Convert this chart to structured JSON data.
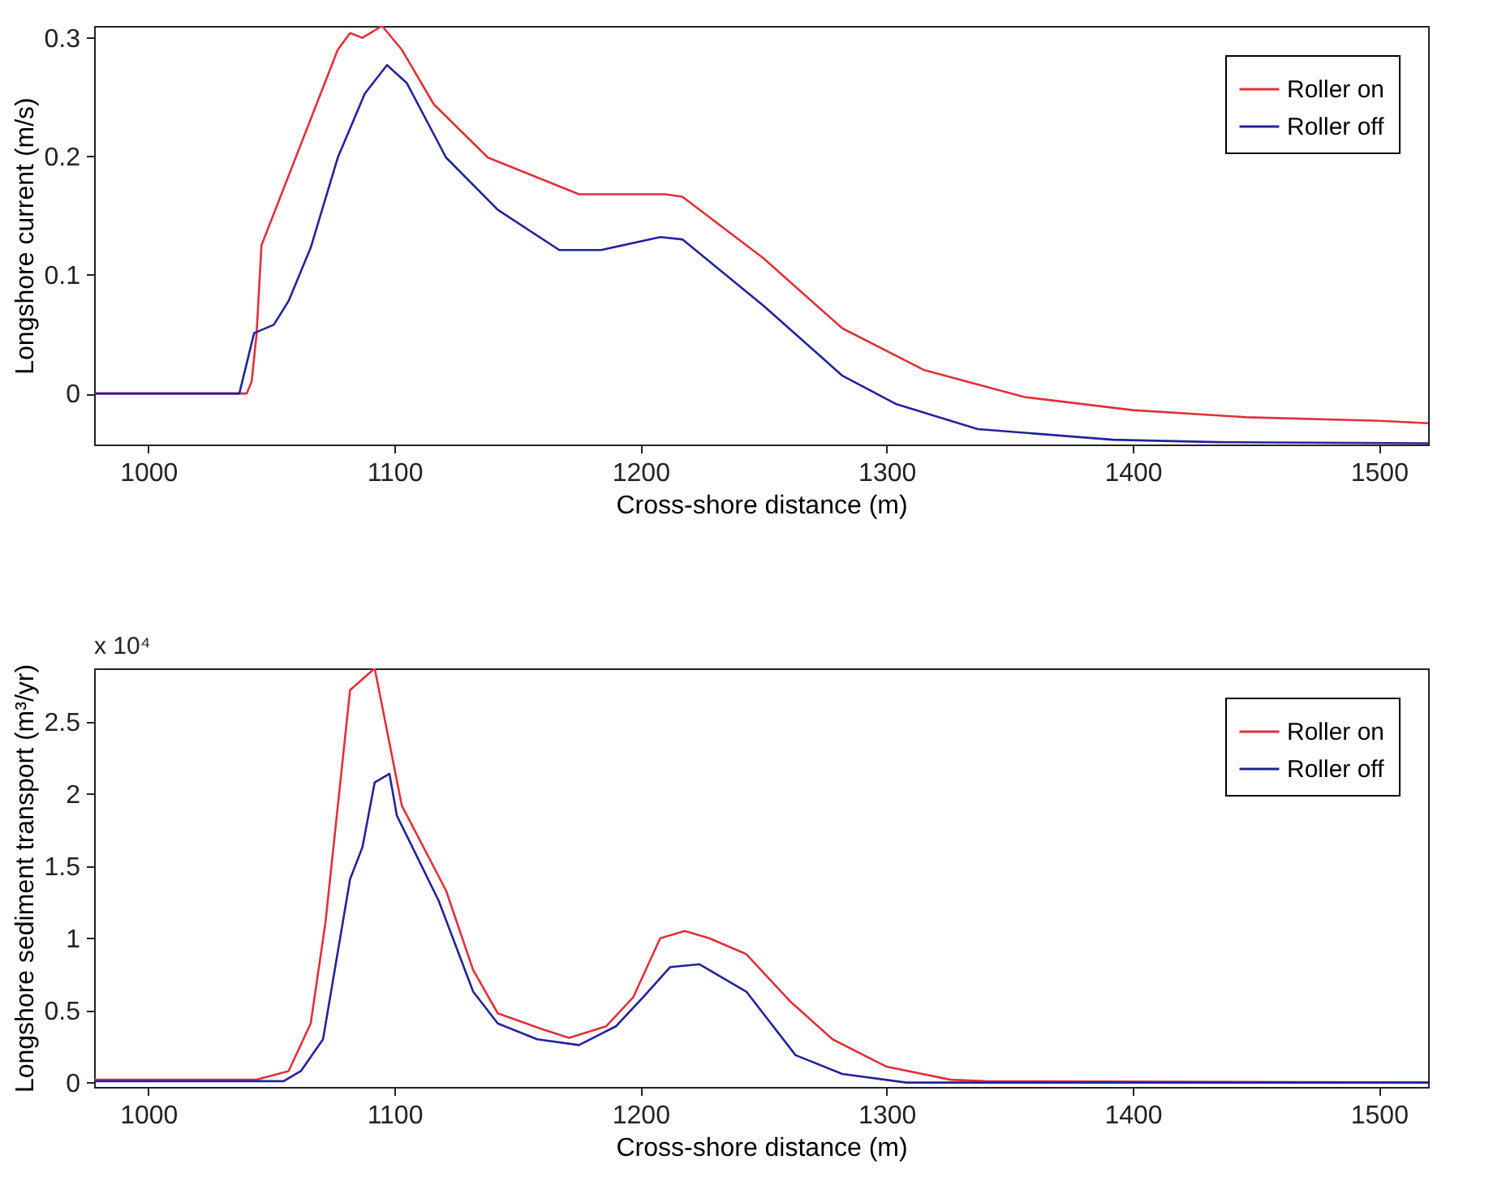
{
  "chart_data": [
    {
      "type": "line",
      "xlabel": "Cross-shore distance (m)",
      "ylabel": "Longshore current (m/s)",
      "xlim": [
        978,
        1520
      ],
      "xticks": [
        1000,
        1100,
        1200,
        1300,
        1400,
        1500
      ],
      "ylim": [
        -0.043,
        0.31
      ],
      "yticks": [
        0,
        0.1,
        0.2,
        0.3
      ],
      "grid": false,
      "legend": "top right",
      "line_style": "solid",
      "marker": "none",
      "series": [
        {
          "name": "Roller on",
          "color": "#e0303a",
          "x": [
            978,
            1040,
            1042,
            1044,
            1046,
            1077,
            1082,
            1087,
            1095,
            1103,
            1116,
            1138,
            1175,
            1210,
            1217,
            1250,
            1282,
            1315,
            1356,
            1400,
            1446,
            1500,
            1520
          ],
          "values": [
            0,
            0,
            0.01,
            0.05,
            0.125,
            0.29,
            0.304,
            0.3,
            0.31,
            0.29,
            0.244,
            0.199,
            0.168,
            0.168,
            0.166,
            0.114,
            0.055,
            0.02,
            -0.003,
            -0.014,
            -0.02,
            -0.023,
            -0.025
          ]
        },
        {
          "name": "Roller off",
          "color": "#22229a",
          "x": [
            978,
            1037,
            1043,
            1051,
            1057,
            1066,
            1077,
            1088,
            1097,
            1105,
            1121,
            1142,
            1167,
            1184,
            1208,
            1217,
            1250,
            1282,
            1304,
            1337,
            1392,
            1435,
            1520
          ],
          "values": [
            0,
            0,
            0.051,
            0.058,
            0.078,
            0.123,
            0.199,
            0.253,
            0.277,
            0.262,
            0.199,
            0.155,
            0.121,
            0.121,
            0.132,
            0.13,
            0.074,
            0.015,
            -0.009,
            -0.03,
            -0.039,
            -0.041,
            -0.042
          ]
        }
      ]
    },
    {
      "type": "line",
      "xlabel": "Cross-shore distance (m)",
      "ylabel": "Longshore sediment transport (m³/yr)",
      "annotations": [
        "x 10⁴"
      ],
      "xlim": [
        978,
        1520
      ],
      "xticks": [
        1000,
        1100,
        1200,
        1300,
        1400,
        1500
      ],
      "ylim": [
        -0.03,
        2.87
      ],
      "yticks": [
        0,
        0.5,
        1,
        1.5,
        2,
        2.5
      ],
      "grid": false,
      "legend": "top right",
      "line_style": "solid",
      "marker": "none",
      "series": [
        {
          "name": "Roller on",
          "color": "#e0303a",
          "x": [
            978,
            1044,
            1057,
            1066,
            1072,
            1082,
            1088,
            1092,
            1103,
            1121,
            1132,
            1142,
            1160,
            1171,
            1186,
            1197,
            1208,
            1218,
            1228,
            1243,
            1261,
            1278,
            1300,
            1326,
            1340,
            1520
          ],
          "values": [
            0.02,
            0.02,
            0.08,
            0.41,
            1.11,
            2.72,
            2.81,
            2.87,
            1.92,
            1.33,
            0.78,
            0.48,
            0.37,
            0.31,
            0.39,
            0.59,
            1.0,
            1.05,
            1.0,
            0.89,
            0.56,
            0.3,
            0.11,
            0.02,
            0.01,
            0
          ]
        },
        {
          "name": "Roller off",
          "color": "#22229a",
          "x": [
            978,
            1055,
            1062,
            1071,
            1082,
            1087,
            1092,
            1098,
            1101,
            1118,
            1132,
            1142,
            1158,
            1175,
            1190,
            1201,
            1212,
            1224,
            1243,
            1263,
            1282,
            1308,
            1520
          ],
          "values": [
            0.01,
            0.01,
            0.08,
            0.3,
            1.41,
            1.63,
            2.08,
            2.14,
            1.85,
            1.26,
            0.63,
            0.41,
            0.3,
            0.26,
            0.39,
            0.59,
            0.8,
            0.82,
            0.63,
            0.19,
            0.06,
            0,
            0
          ]
        }
      ]
    }
  ]
}
